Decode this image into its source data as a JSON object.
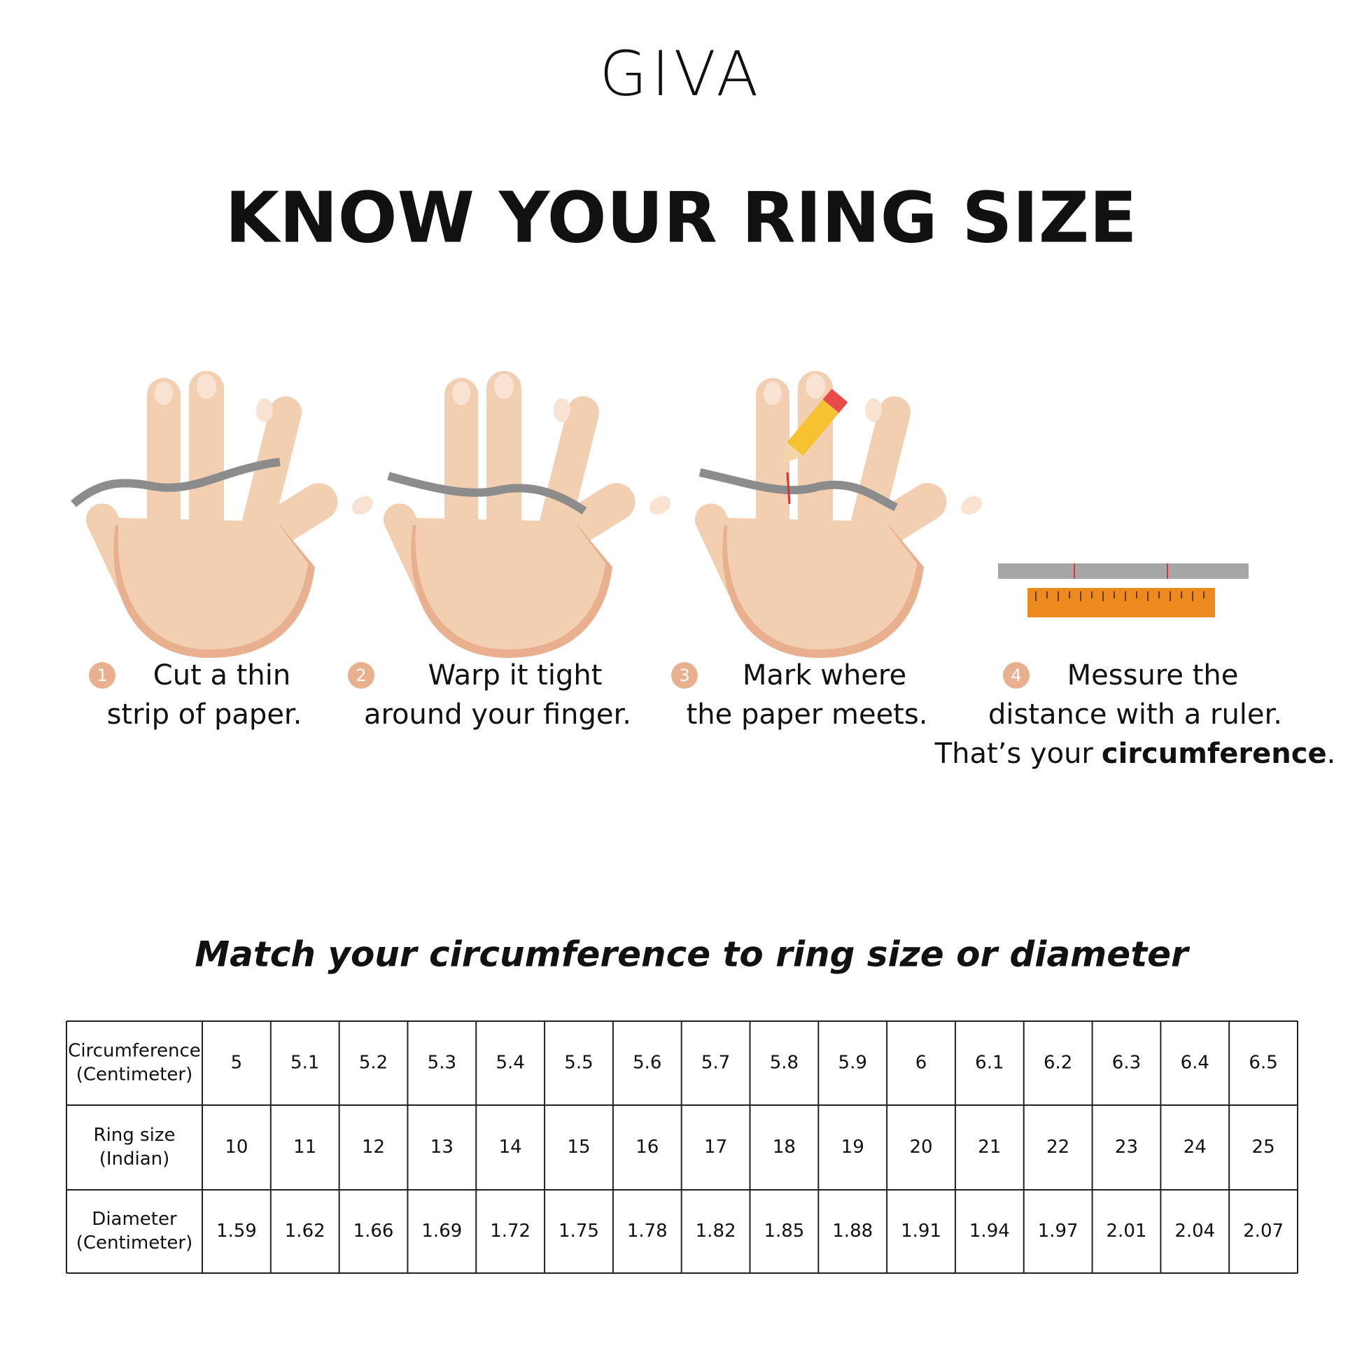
{
  "header": {
    "brand": "GIVA",
    "title": "KNOW YOUR RING SIZE"
  },
  "steps": [
    {
      "number": "1",
      "lines": [
        "Cut a thin",
        "strip of paper."
      ]
    },
    {
      "number": "2",
      "lines": [
        "Warp it tight",
        "around your finger."
      ]
    },
    {
      "number": "3",
      "lines": [
        "Mark where",
        "the paper meets."
      ]
    },
    {
      "number": "4",
      "lines": [
        "Messure the",
        "distance with a ruler."
      ],
      "last_line": {
        "start": "That’s your",
        "emphasis": "circumference",
        "end": "."
      }
    }
  ],
  "table": {
    "subtitle": "Match your circumference to ring size or diameter",
    "rows": [
      {
        "header": [
          "Circumference",
          "(Centimeter)"
        ],
        "values": [
          5,
          5.1,
          5.2,
          5.3,
          5.4,
          5.5,
          5.6,
          5.7,
          5.8,
          5.9,
          6,
          6.1,
          6.2,
          6.3,
          6.4,
          6.5
        ]
      },
      {
        "header": [
          "Ring size",
          "(Indian)"
        ],
        "values": [
          10,
          11,
          12,
          13,
          14,
          15,
          16,
          17,
          18,
          19,
          20,
          21,
          22,
          23,
          24,
          25
        ]
      },
      {
        "header": [
          "Diameter",
          "(Centimeter)"
        ],
        "values": [
          1.59,
          1.62,
          1.66,
          1.69,
          1.72,
          1.75,
          1.78,
          1.82,
          1.85,
          1.88,
          1.91,
          1.94,
          1.97,
          2.01,
          2.04,
          2.07
        ]
      }
    ]
  }
}
